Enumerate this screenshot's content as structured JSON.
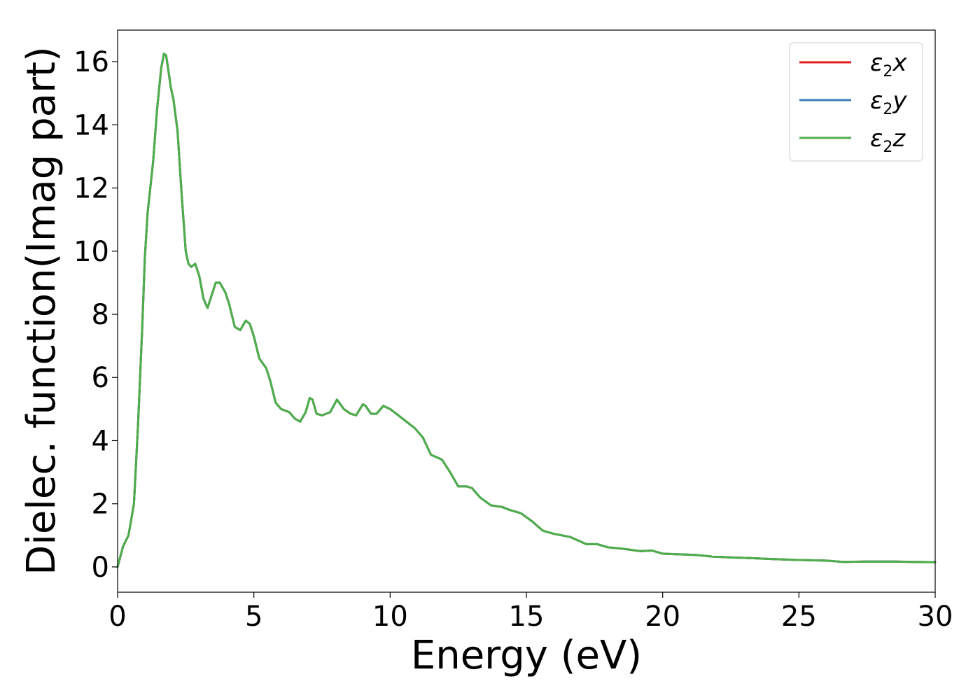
{
  "chart_data": {
    "type": "line",
    "xlabel": "Energy (eV)",
    "ylabel": "Dielec. function(Imag part)",
    "xlim": [
      0,
      30
    ],
    "ylim": [
      -0.8,
      17.0
    ],
    "xticks": [
      "0",
      "5",
      "10",
      "15",
      "20",
      "25",
      "30"
    ],
    "yticks": [
      "0",
      "2",
      "4",
      "6",
      "8",
      "10",
      "12",
      "14",
      "16"
    ],
    "grid": false,
    "legend_position": "top-right",
    "x": [
      0,
      0.2,
      0.4,
      0.6,
      0.75,
      0.9,
      1.0,
      1.1,
      1.2,
      1.3,
      1.45,
      1.6,
      1.7,
      1.78,
      1.85,
      1.95,
      2.05,
      2.2,
      2.35,
      2.5,
      2.6,
      2.7,
      2.85,
      3.0,
      3.15,
      3.3,
      3.45,
      3.6,
      3.75,
      3.95,
      4.1,
      4.3,
      4.5,
      4.7,
      4.85,
      5.0,
      5.2,
      5.45,
      5.6,
      5.8,
      6.0,
      6.3,
      6.5,
      6.7,
      6.9,
      7.05,
      7.15,
      7.3,
      7.5,
      7.8,
      8.05,
      8.3,
      8.55,
      8.75,
      9.0,
      9.1,
      9.3,
      9.5,
      9.75,
      10.0,
      10.3,
      10.6,
      10.9,
      11.2,
      11.5,
      11.9,
      12.2,
      12.5,
      12.8,
      13.0,
      13.3,
      13.7,
      14.1,
      14.4,
      14.8,
      15.2,
      15.6,
      16.0,
      16.6,
      17.2,
      17.6,
      18.0,
      18.5,
      19.2,
      19.6,
      20.0,
      20.6,
      21.2,
      21.8,
      22.5,
      23.2,
      24.0,
      25.0,
      26.0,
      26.6,
      27.5,
      28.5,
      29.2,
      30.0
    ],
    "series": [
      {
        "name": "ε2x",
        "color": "#e41a1c",
        "values": [
          0.0,
          0.65,
          1.0,
          2.0,
          4.5,
          7.5,
          9.8,
          11.2,
          12.0,
          12.8,
          14.5,
          15.8,
          16.25,
          16.2,
          15.8,
          15.2,
          14.8,
          13.8,
          11.8,
          10.0,
          9.6,
          9.5,
          9.6,
          9.2,
          8.5,
          8.2,
          8.6,
          9.0,
          9.0,
          8.7,
          8.3,
          7.6,
          7.5,
          7.8,
          7.7,
          7.3,
          6.6,
          6.3,
          5.9,
          5.2,
          5.0,
          4.9,
          4.7,
          4.6,
          4.9,
          5.35,
          5.3,
          4.85,
          4.8,
          4.9,
          5.3,
          5.0,
          4.85,
          4.8,
          5.15,
          5.1,
          4.85,
          4.85,
          5.1,
          5.0,
          4.8,
          4.6,
          4.4,
          4.1,
          3.55,
          3.4,
          3.0,
          2.55,
          2.55,
          2.5,
          2.2,
          1.95,
          1.9,
          1.8,
          1.7,
          1.45,
          1.15,
          1.05,
          0.95,
          0.72,
          0.72,
          0.62,
          0.58,
          0.5,
          0.52,
          0.42,
          0.4,
          0.38,
          0.33,
          0.3,
          0.28,
          0.25,
          0.22,
          0.2,
          0.16,
          0.17,
          0.17,
          0.16,
          0.15
        ]
      },
      {
        "name": "ε2y",
        "color": "#377eb8",
        "values": [
          0.0,
          0.65,
          1.0,
          2.0,
          4.5,
          7.5,
          9.8,
          11.2,
          12.0,
          12.8,
          14.5,
          15.8,
          16.25,
          16.2,
          15.8,
          15.2,
          14.8,
          13.8,
          11.8,
          10.0,
          9.6,
          9.5,
          9.6,
          9.2,
          8.5,
          8.2,
          8.6,
          9.0,
          9.0,
          8.7,
          8.3,
          7.6,
          7.5,
          7.8,
          7.7,
          7.3,
          6.6,
          6.3,
          5.9,
          5.2,
          5.0,
          4.9,
          4.7,
          4.6,
          4.9,
          5.35,
          5.3,
          4.85,
          4.8,
          4.9,
          5.3,
          5.0,
          4.85,
          4.8,
          5.15,
          5.1,
          4.85,
          4.85,
          5.1,
          5.0,
          4.8,
          4.6,
          4.4,
          4.1,
          3.55,
          3.4,
          3.0,
          2.55,
          2.55,
          2.5,
          2.2,
          1.95,
          1.9,
          1.8,
          1.7,
          1.45,
          1.15,
          1.05,
          0.95,
          0.72,
          0.72,
          0.62,
          0.58,
          0.5,
          0.52,
          0.42,
          0.4,
          0.38,
          0.33,
          0.3,
          0.28,
          0.25,
          0.22,
          0.2,
          0.16,
          0.17,
          0.17,
          0.16,
          0.15
        ]
      },
      {
        "name": "ε2z",
        "color": "#4daf4a",
        "values": [
          0.0,
          0.65,
          1.0,
          2.0,
          4.5,
          7.5,
          9.8,
          11.2,
          12.0,
          12.8,
          14.5,
          15.8,
          16.25,
          16.2,
          15.8,
          15.2,
          14.8,
          13.8,
          11.8,
          10.0,
          9.6,
          9.5,
          9.6,
          9.2,
          8.5,
          8.2,
          8.6,
          9.0,
          9.0,
          8.7,
          8.3,
          7.6,
          7.5,
          7.8,
          7.7,
          7.3,
          6.6,
          6.3,
          5.9,
          5.2,
          5.0,
          4.9,
          4.7,
          4.6,
          4.9,
          5.35,
          5.3,
          4.85,
          4.8,
          4.9,
          5.3,
          5.0,
          4.85,
          4.8,
          5.15,
          5.1,
          4.85,
          4.85,
          5.1,
          5.0,
          4.8,
          4.6,
          4.4,
          4.1,
          3.55,
          3.4,
          3.0,
          2.55,
          2.55,
          2.5,
          2.2,
          1.95,
          1.9,
          1.8,
          1.7,
          1.45,
          1.15,
          1.05,
          0.95,
          0.72,
          0.72,
          0.62,
          0.58,
          0.5,
          0.52,
          0.42,
          0.4,
          0.38,
          0.33,
          0.3,
          0.28,
          0.25,
          0.22,
          0.2,
          0.16,
          0.17,
          0.17,
          0.16,
          0.15
        ]
      }
    ],
    "legend": [
      {
        "symbol": "ε",
        "sub": "2",
        "var": "x"
      },
      {
        "symbol": "ε",
        "sub": "2",
        "var": "y"
      },
      {
        "symbol": "ε",
        "sub": "2",
        "var": "z"
      }
    ]
  }
}
